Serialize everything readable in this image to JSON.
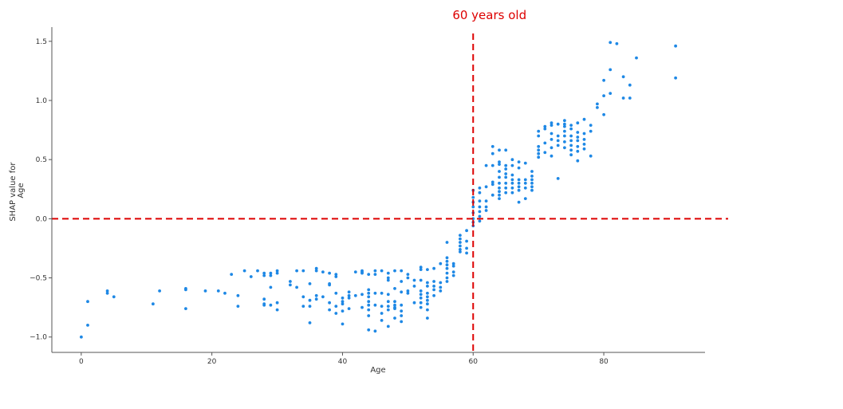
{
  "chart_data": {
    "type": "scatter",
    "title": "",
    "xlabel": "Age",
    "ylabel_lines": [
      "SHAP value for",
      "Age"
    ],
    "xlim": [
      -4.5,
      95.5
    ],
    "ylim": [
      -1.13,
      1.62
    ],
    "xticks": [
      0,
      20,
      40,
      60,
      80
    ],
    "yticks": [
      -1.0,
      -0.5,
      0.0,
      0.5,
      1.0,
      1.5
    ],
    "ytick_labels": [
      "−1.0",
      "−0.5",
      "0.0",
      "0.5",
      "1.0",
      "1.5"
    ],
    "grid": false,
    "point_color": "#1e88e5",
    "reference_lines": [
      {
        "orientation": "vertical",
        "value": 60,
        "color": "#dd0000",
        "style": "dashed"
      },
      {
        "orientation": "horizontal",
        "value": 0.0,
        "color": "#dd0000",
        "style": "dashed"
      }
    ],
    "annotations": [
      {
        "text": "60 years old",
        "x": 62.5,
        "y": 1.72,
        "color": "#dd0000"
      }
    ],
    "points": [
      [
        0,
        -1.0
      ],
      [
        1,
        -0.7
      ],
      [
        1,
        -0.9
      ],
      [
        4,
        -0.61
      ],
      [
        4,
        -0.63
      ],
      [
        5,
        -0.66
      ],
      [
        11,
        -0.72
      ],
      [
        12,
        -0.61
      ],
      [
        16,
        -0.59
      ],
      [
        16,
        -0.6
      ],
      [
        16,
        -0.76
      ],
      [
        19,
        -0.61
      ],
      [
        21,
        -0.61
      ],
      [
        22,
        -0.63
      ],
      [
        23,
        -0.47
      ],
      [
        24,
        -0.65
      ],
      [
        24,
        -0.74
      ],
      [
        25,
        -0.44
      ],
      [
        26,
        -0.49
      ],
      [
        27,
        -0.44
      ],
      [
        28,
        -0.46
      ],
      [
        28,
        -0.48
      ],
      [
        28,
        -0.68
      ],
      [
        28,
        -0.72
      ],
      [
        28,
        -0.73
      ],
      [
        29,
        -0.46
      ],
      [
        29,
        -0.48
      ],
      [
        29,
        -0.58
      ],
      [
        29,
        -0.73
      ],
      [
        30,
        -0.44
      ],
      [
        30,
        -0.46
      ],
      [
        30,
        -0.71
      ],
      [
        30,
        -0.77
      ],
      [
        32,
        -0.53
      ],
      [
        32,
        -0.56
      ],
      [
        33,
        -0.44
      ],
      [
        33,
        -0.58
      ],
      [
        34,
        -0.44
      ],
      [
        34,
        -0.66
      ],
      [
        34,
        -0.74
      ],
      [
        35,
        -0.55
      ],
      [
        35,
        -0.69
      ],
      [
        35,
        -0.74
      ],
      [
        35,
        -0.88
      ],
      [
        36,
        -0.42
      ],
      [
        36,
        -0.44
      ],
      [
        36,
        -0.65
      ],
      [
        36,
        -0.68
      ],
      [
        37,
        -0.45
      ],
      [
        37,
        -0.66
      ],
      [
        38,
        -0.46
      ],
      [
        38,
        -0.55
      ],
      [
        38,
        -0.56
      ],
      [
        38,
        -0.71
      ],
      [
        38,
        -0.77
      ],
      [
        39,
        -0.47
      ],
      [
        39,
        -0.49
      ],
      [
        39,
        -0.63
      ],
      [
        39,
        -0.74
      ],
      [
        39,
        -0.8
      ],
      [
        40,
        -0.67
      ],
      [
        40,
        -0.7
      ],
      [
        40,
        -0.72
      ],
      [
        40,
        -0.78
      ],
      [
        40,
        -0.89
      ],
      [
        41,
        -0.62
      ],
      [
        41,
        -0.65
      ],
      [
        41,
        -0.67
      ],
      [
        41,
        -0.76
      ],
      [
        42,
        -0.45
      ],
      [
        42,
        -0.65
      ],
      [
        43,
        -0.44
      ],
      [
        43,
        -0.45
      ],
      [
        43,
        -0.46
      ],
      [
        43,
        -0.64
      ],
      [
        43,
        -0.75
      ],
      [
        44,
        -0.47
      ],
      [
        44,
        -0.6
      ],
      [
        44,
        -0.63
      ],
      [
        44,
        -0.66
      ],
      [
        44,
        -0.7
      ],
      [
        44,
        -0.73
      ],
      [
        44,
        -0.77
      ],
      [
        44,
        -0.82
      ],
      [
        44,
        -0.94
      ],
      [
        45,
        -0.44
      ],
      [
        45,
        -0.47
      ],
      [
        45,
        -0.63
      ],
      [
        45,
        -0.73
      ],
      [
        45,
        -0.95
      ],
      [
        46,
        -0.44
      ],
      [
        46,
        -0.63
      ],
      [
        46,
        -0.74
      ],
      [
        46,
        -0.8
      ],
      [
        46,
        -0.86
      ],
      [
        47,
        -0.46
      ],
      [
        47,
        -0.5
      ],
      [
        47,
        -0.52
      ],
      [
        47,
        -0.64
      ],
      [
        47,
        -0.7
      ],
      [
        47,
        -0.74
      ],
      [
        47,
        -0.77
      ],
      [
        47,
        -0.91
      ],
      [
        48,
        -0.44
      ],
      [
        48,
        -0.59
      ],
      [
        48,
        -0.7
      ],
      [
        48,
        -0.73
      ],
      [
        48,
        -0.75
      ],
      [
        48,
        -0.76
      ],
      [
        48,
        -0.84
      ],
      [
        49,
        -0.44
      ],
      [
        49,
        -0.53
      ],
      [
        49,
        -0.62
      ],
      [
        49,
        -0.73
      ],
      [
        49,
        -0.78
      ],
      [
        49,
        -0.82
      ],
      [
        49,
        -0.87
      ],
      [
        50,
        -0.47
      ],
      [
        50,
        -0.5
      ],
      [
        50,
        -0.61
      ],
      [
        50,
        -0.63
      ],
      [
        51,
        -0.52
      ],
      [
        51,
        -0.57
      ],
      [
        51,
        -0.71
      ],
      [
        52,
        -0.41
      ],
      [
        52,
        -0.43
      ],
      [
        52,
        -0.52
      ],
      [
        52,
        -0.61
      ],
      [
        52,
        -0.64
      ],
      [
        52,
        -0.67
      ],
      [
        52,
        -0.71
      ],
      [
        52,
        -0.75
      ],
      [
        53,
        -0.43
      ],
      [
        53,
        -0.54
      ],
      [
        53,
        -0.57
      ],
      [
        53,
        -0.63
      ],
      [
        53,
        -0.66
      ],
      [
        53,
        -0.69
      ],
      [
        53,
        -0.72
      ],
      [
        53,
        -0.77
      ],
      [
        53,
        -0.84
      ],
      [
        54,
        -0.42
      ],
      [
        54,
        -0.53
      ],
      [
        54,
        -0.57
      ],
      [
        54,
        -0.6
      ],
      [
        54,
        -0.65
      ],
      [
        55,
        -0.38
      ],
      [
        55,
        -0.54
      ],
      [
        55,
        -0.58
      ],
      [
        55,
        -0.61
      ],
      [
        56,
        -0.2
      ],
      [
        56,
        -0.33
      ],
      [
        56,
        -0.36
      ],
      [
        56,
        -0.39
      ],
      [
        56,
        -0.42
      ],
      [
        56,
        -0.46
      ],
      [
        56,
        -0.5
      ],
      [
        56,
        -0.53
      ],
      [
        57,
        -0.38
      ],
      [
        57,
        -0.4
      ],
      [
        57,
        -0.45
      ],
      [
        57,
        -0.48
      ],
      [
        58,
        -0.14
      ],
      [
        58,
        -0.17
      ],
      [
        58,
        -0.2
      ],
      [
        58,
        -0.23
      ],
      [
        58,
        -0.26
      ],
      [
        58,
        -0.28
      ],
      [
        59,
        -0.1
      ],
      [
        59,
        -0.19
      ],
      [
        59,
        -0.25
      ],
      [
        59,
        -0.29
      ],
      [
        60,
        -0.06
      ],
      [
        60,
        -0.03
      ],
      [
        60,
        0.0
      ],
      [
        60,
        0.05
      ],
      [
        60,
        0.1
      ],
      [
        60,
        0.14
      ],
      [
        60,
        0.18
      ],
      [
        60,
        0.24
      ],
      [
        61,
        -0.02
      ],
      [
        61,
        0.02
      ],
      [
        61,
        0.06
      ],
      [
        61,
        0.1
      ],
      [
        61,
        0.15
      ],
      [
        61,
        0.22
      ],
      [
        61,
        0.26
      ],
      [
        62,
        0.07
      ],
      [
        62,
        0.1
      ],
      [
        62,
        0.15
      ],
      [
        62,
        0.27
      ],
      [
        62,
        0.45
      ],
      [
        63,
        0.2
      ],
      [
        63,
        0.29
      ],
      [
        63,
        0.31
      ],
      [
        63,
        0.45
      ],
      [
        63,
        0.55
      ],
      [
        63,
        0.61
      ],
      [
        64,
        0.17
      ],
      [
        64,
        0.2
      ],
      [
        64,
        0.23
      ],
      [
        64,
        0.26
      ],
      [
        64,
        0.3
      ],
      [
        64,
        0.35
      ],
      [
        64,
        0.4
      ],
      [
        64,
        0.46
      ],
      [
        64,
        0.48
      ],
      [
        64,
        0.58
      ],
      [
        65,
        0.22
      ],
      [
        65,
        0.26
      ],
      [
        65,
        0.3
      ],
      [
        65,
        0.35
      ],
      [
        65,
        0.38
      ],
      [
        65,
        0.42
      ],
      [
        65,
        0.45
      ],
      [
        65,
        0.58
      ],
      [
        66,
        0.22
      ],
      [
        66,
        0.26
      ],
      [
        66,
        0.3
      ],
      [
        66,
        0.33
      ],
      [
        66,
        0.37
      ],
      [
        66,
        0.45
      ],
      [
        66,
        0.5
      ],
      [
        67,
        0.14
      ],
      [
        67,
        0.24
      ],
      [
        67,
        0.27
      ],
      [
        67,
        0.3
      ],
      [
        67,
        0.33
      ],
      [
        67,
        0.43
      ],
      [
        67,
        0.48
      ],
      [
        68,
        0.17
      ],
      [
        68,
        0.26
      ],
      [
        68,
        0.3
      ],
      [
        68,
        0.33
      ],
      [
        68,
        0.47
      ],
      [
        69,
        0.24
      ],
      [
        69,
        0.27
      ],
      [
        69,
        0.3
      ],
      [
        69,
        0.33
      ],
      [
        69,
        0.36
      ],
      [
        69,
        0.4
      ],
      [
        70,
        0.52
      ],
      [
        70,
        0.55
      ],
      [
        70,
        0.58
      ],
      [
        70,
        0.61
      ],
      [
        70,
        0.7
      ],
      [
        70,
        0.74
      ],
      [
        71,
        0.56
      ],
      [
        71,
        0.64
      ],
      [
        71,
        0.76
      ],
      [
        71,
        0.78
      ],
      [
        72,
        0.53
      ],
      [
        72,
        0.6
      ],
      [
        72,
        0.67
      ],
      [
        72,
        0.72
      ],
      [
        72,
        0.79
      ],
      [
        72,
        0.81
      ],
      [
        73,
        0.34
      ],
      [
        73,
        0.62
      ],
      [
        73,
        0.66
      ],
      [
        73,
        0.7
      ],
      [
        73,
        0.8
      ],
      [
        74,
        0.6
      ],
      [
        74,
        0.65
      ],
      [
        74,
        0.7
      ],
      [
        74,
        0.74
      ],
      [
        74,
        0.78
      ],
      [
        74,
        0.8
      ],
      [
        74,
        0.83
      ],
      [
        75,
        0.54
      ],
      [
        75,
        0.58
      ],
      [
        75,
        0.62
      ],
      [
        75,
        0.66
      ],
      [
        75,
        0.7
      ],
      [
        75,
        0.76
      ],
      [
        75,
        0.79
      ],
      [
        76,
        0.49
      ],
      [
        76,
        0.57
      ],
      [
        76,
        0.61
      ],
      [
        76,
        0.66
      ],
      [
        76,
        0.69
      ],
      [
        76,
        0.73
      ],
      [
        76,
        0.81
      ],
      [
        77,
        0.59
      ],
      [
        77,
        0.63
      ],
      [
        77,
        0.67
      ],
      [
        77,
        0.72
      ],
      [
        77,
        0.84
      ],
      [
        78,
        0.53
      ],
      [
        78,
        0.74
      ],
      [
        78,
        0.79
      ],
      [
        79,
        0.94
      ],
      [
        79,
        0.97
      ],
      [
        80,
        0.88
      ],
      [
        80,
        1.04
      ],
      [
        80,
        1.17
      ],
      [
        81,
        1.06
      ],
      [
        81,
        1.26
      ],
      [
        81,
        1.49
      ],
      [
        82,
        1.48
      ],
      [
        83,
        1.02
      ],
      [
        83,
        1.2
      ],
      [
        84,
        1.02
      ],
      [
        84,
        1.13
      ],
      [
        85,
        1.36
      ],
      [
        91,
        1.19
      ],
      [
        91,
        1.46
      ]
    ]
  }
}
